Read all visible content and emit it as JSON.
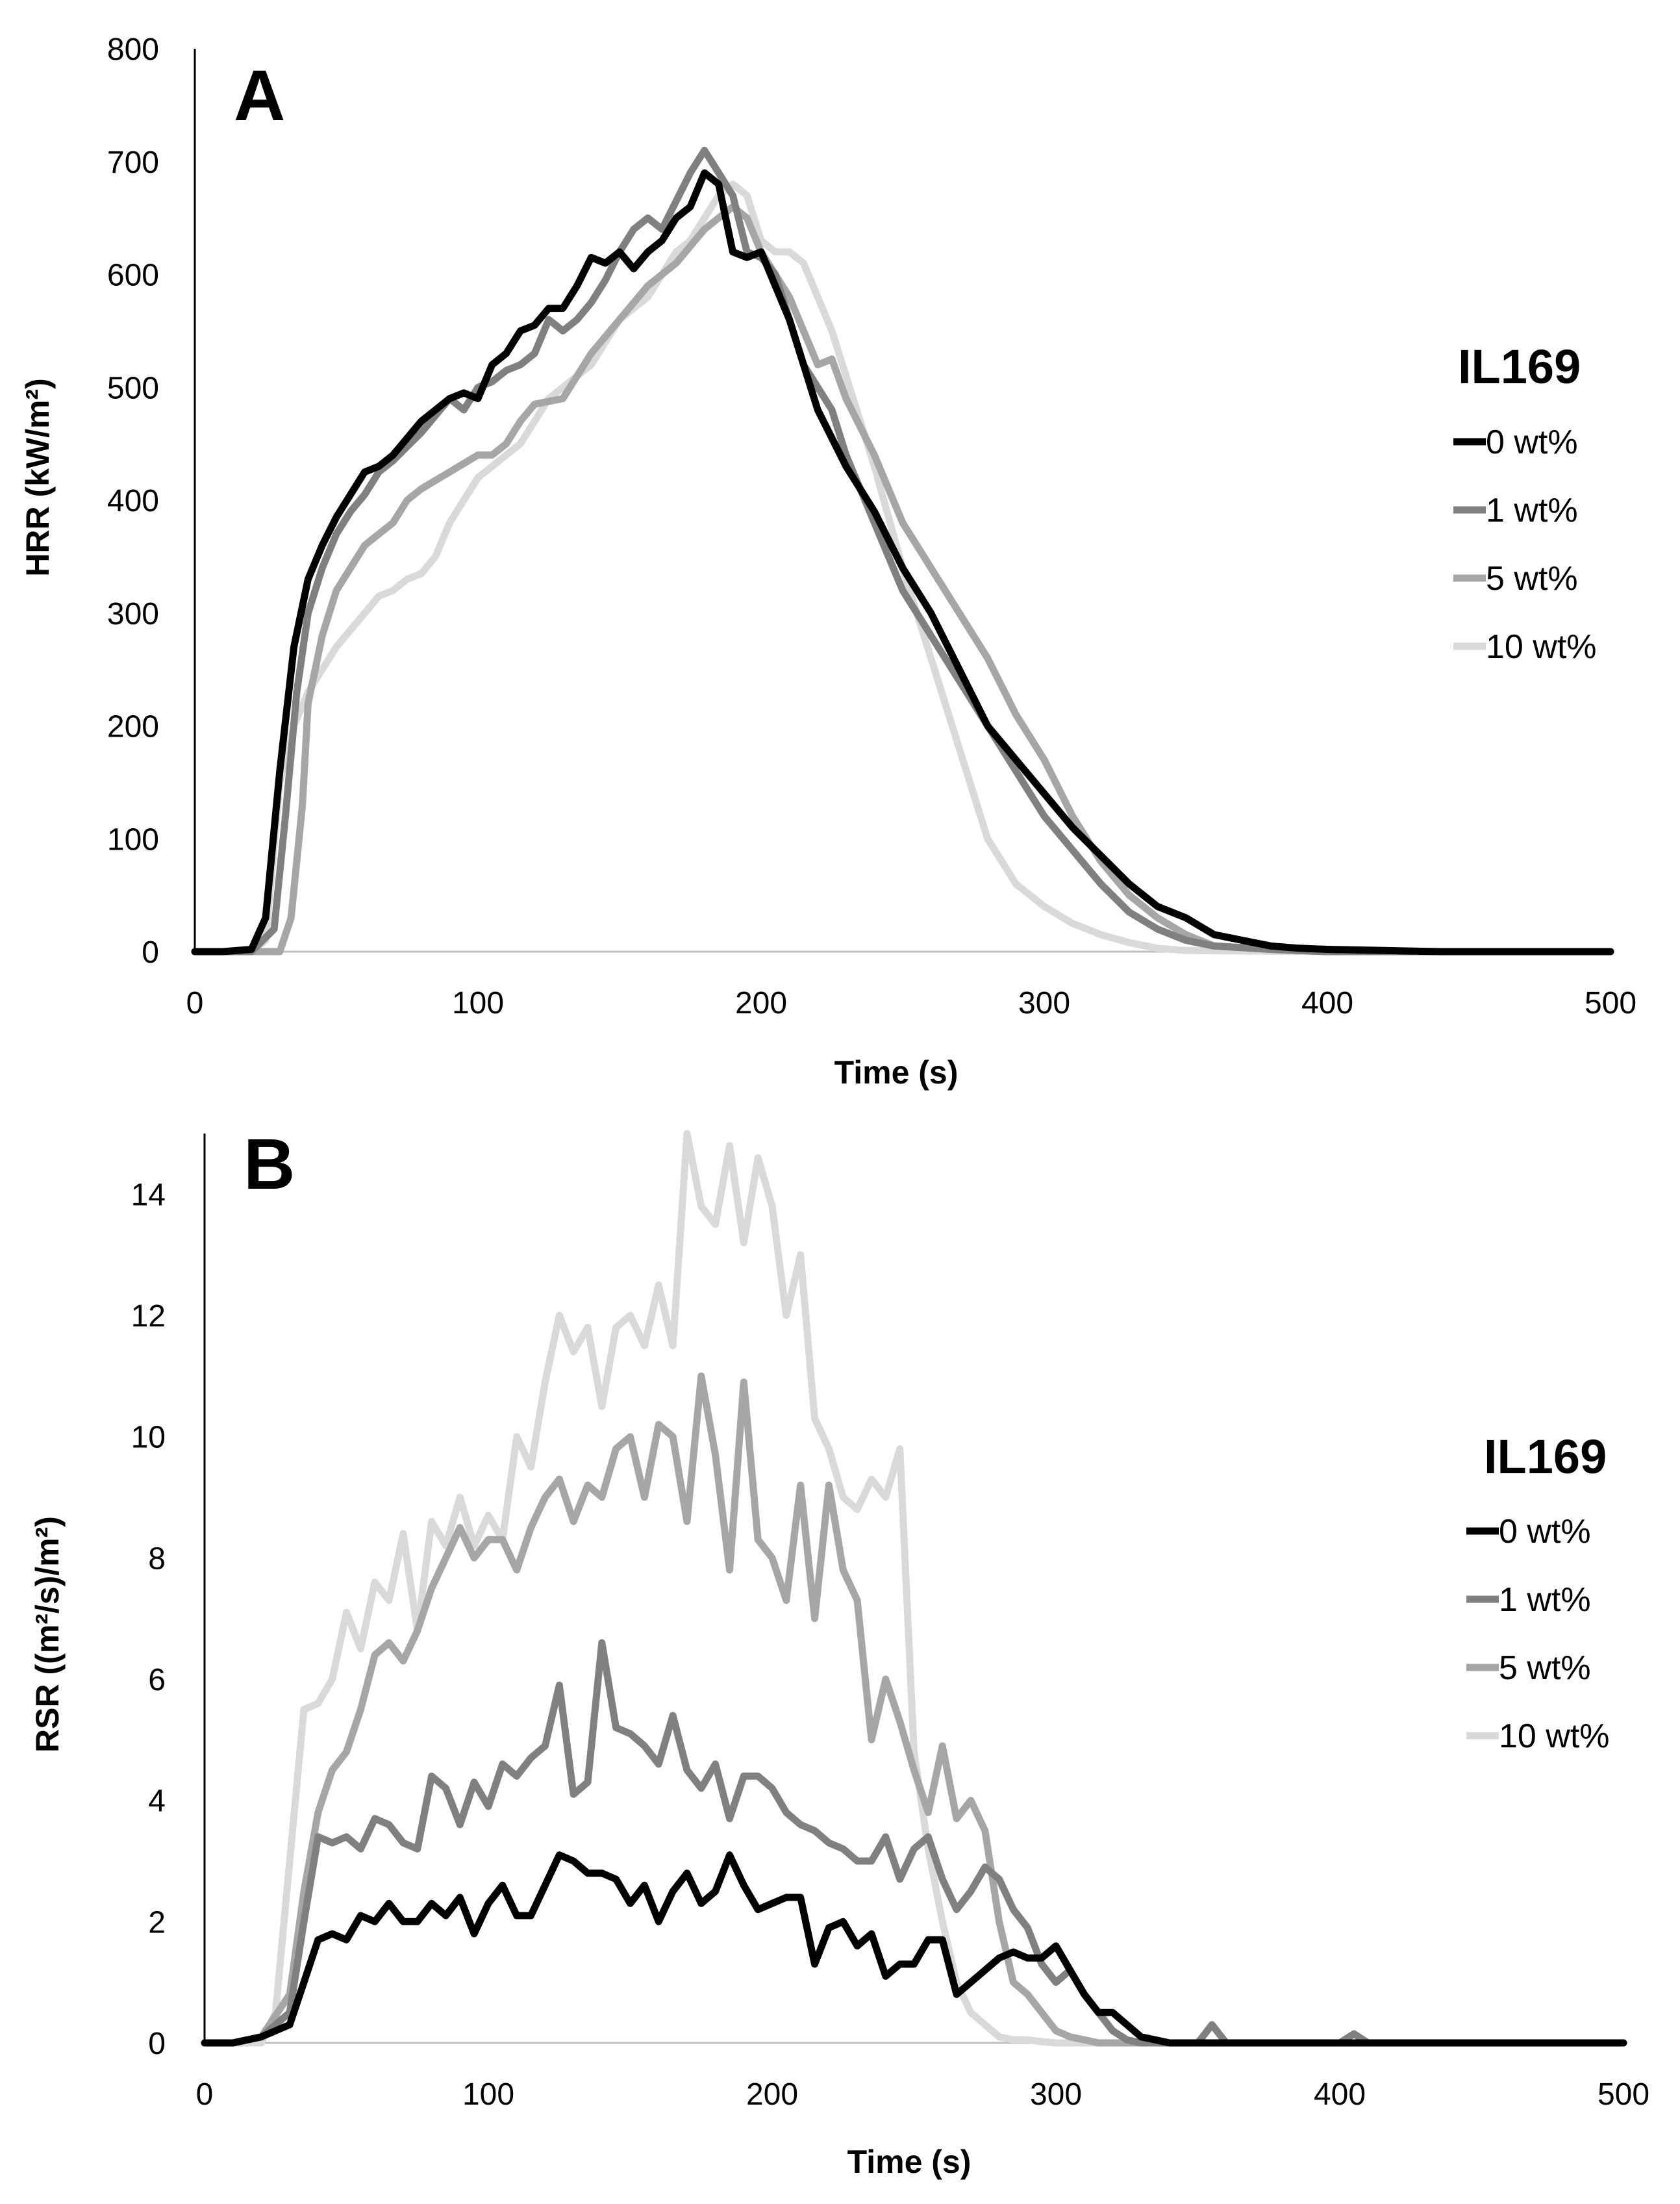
{
  "colors": {
    "s0": "#000000",
    "s1": "#808080",
    "s5": "#A6A6A6",
    "s10": "#D9D9D9",
    "axis": "#000000",
    "text": "#000000"
  },
  "chart_data": [
    {
      "type": "line",
      "panel_label": "A",
      "title": "",
      "xlabel": "Time (s)",
      "ylabel": "HRR (kW/m²)",
      "xlim": [
        0,
        500
      ],
      "ylim": [
        0,
        800
      ],
      "grid": false,
      "xticks": [
        0,
        100,
        200,
        300,
        400,
        500
      ],
      "yticks": [
        0,
        100,
        200,
        300,
        400,
        500,
        600,
        700,
        800
      ],
      "legend": {
        "title": "IL169",
        "position": "right",
        "entries": [
          "0 wt%",
          "1 wt%",
          "5 wt%",
          "10 wt%"
        ]
      },
      "series": [
        {
          "name": "0 wt%",
          "color_key": "s0",
          "x": [
            0,
            10,
            20,
            25,
            30,
            35,
            40,
            45,
            50,
            55,
            60,
            65,
            70,
            75,
            80,
            85,
            90,
            95,
            100,
            105,
            110,
            115,
            120,
            125,
            130,
            135,
            140,
            145,
            150,
            155,
            160,
            165,
            170,
            175,
            180,
            185,
            190,
            195,
            200,
            205,
            210,
            215,
            220,
            225,
            230,
            240,
            250,
            260,
            270,
            280,
            290,
            300,
            310,
            320,
            330,
            340,
            350,
            360,
            370,
            380,
            390,
            400,
            420,
            440,
            460,
            480,
            500
          ],
          "y": [
            0,
            0,
            2,
            30,
            160,
            270,
            330,
            360,
            385,
            405,
            425,
            430,
            440,
            455,
            470,
            480,
            490,
            495,
            490,
            520,
            530,
            550,
            555,
            570,
            570,
            590,
            615,
            610,
            620,
            605,
            620,
            630,
            650,
            660,
            690,
            680,
            620,
            615,
            620,
            590,
            560,
            520,
            480,
            455,
            430,
            390,
            340,
            300,
            250,
            200,
            170,
            140,
            110,
            85,
            60,
            40,
            30,
            15,
            10,
            5,
            3,
            2,
            1,
            0,
            0,
            0,
            0
          ]
        },
        {
          "name": "1 wt%",
          "color_key": "s1",
          "x": [
            0,
            10,
            20,
            28,
            32,
            36,
            40,
            45,
            50,
            55,
            60,
            65,
            70,
            80,
            90,
            95,
            100,
            105,
            110,
            115,
            120,
            125,
            130,
            135,
            140,
            145,
            150,
            155,
            160,
            165,
            170,
            175,
            180,
            185,
            190,
            195,
            200,
            205,
            210,
            215,
            220,
            225,
            230,
            240,
            250,
            260,
            270,
            280,
            290,
            300,
            310,
            320,
            330,
            340,
            350,
            360,
            380,
            400,
            420,
            450,
            480,
            500
          ],
          "y": [
            0,
            0,
            0,
            20,
            120,
            230,
            300,
            340,
            370,
            390,
            405,
            425,
            435,
            460,
            490,
            480,
            500,
            505,
            515,
            520,
            530,
            560,
            550,
            560,
            575,
            595,
            620,
            640,
            650,
            640,
            665,
            690,
            710,
            690,
            670,
            620,
            615,
            600,
            560,
            520,
            500,
            480,
            440,
            380,
            320,
            280,
            240,
            200,
            160,
            120,
            90,
            60,
            35,
            20,
            10,
            5,
            2,
            0,
            0,
            0,
            0,
            0
          ]
        },
        {
          "name": "5 wt%",
          "color_key": "s5",
          "x": [
            0,
            10,
            20,
            30,
            34,
            38,
            40,
            45,
            50,
            55,
            60,
            65,
            70,
            75,
            80,
            90,
            100,
            105,
            110,
            115,
            120,
            130,
            140,
            150,
            160,
            170,
            180,
            185,
            190,
            195,
            200,
            210,
            220,
            225,
            230,
            240,
            250,
            260,
            270,
            280,
            290,
            300,
            310,
            320,
            330,
            340,
            350,
            360,
            380,
            400,
            450,
            500
          ],
          "y": [
            0,
            0,
            0,
            0,
            30,
            130,
            220,
            280,
            320,
            340,
            360,
            370,
            380,
            400,
            410,
            425,
            440,
            440,
            450,
            470,
            485,
            490,
            530,
            560,
            590,
            610,
            640,
            650,
            660,
            650,
            620,
            580,
            520,
            525,
            490,
            440,
            380,
            340,
            300,
            260,
            210,
            170,
            120,
            80,
            50,
            30,
            15,
            5,
            2,
            0,
            0,
            0
          ]
        },
        {
          "name": "10 wt%",
          "color_key": "s10",
          "x": [
            0,
            10,
            20,
            25,
            30,
            35,
            40,
            45,
            50,
            55,
            60,
            65,
            70,
            75,
            80,
            85,
            90,
            95,
            100,
            105,
            110,
            115,
            120,
            125,
            130,
            135,
            140,
            145,
            150,
            155,
            160,
            165,
            170,
            175,
            180,
            185,
            190,
            195,
            200,
            205,
            210,
            215,
            220,
            225,
            230,
            240,
            250,
            260,
            270,
            280,
            290,
            300,
            310,
            320,
            330,
            340,
            350,
            400,
            450,
            500
          ],
          "y": [
            0,
            0,
            0,
            10,
            150,
            200,
            230,
            250,
            270,
            285,
            300,
            315,
            320,
            330,
            335,
            350,
            380,
            400,
            420,
            430,
            440,
            450,
            470,
            490,
            500,
            510,
            520,
            540,
            560,
            570,
            580,
            600,
            620,
            630,
            650,
            670,
            680,
            670,
            630,
            620,
            620,
            610,
            580,
            550,
            510,
            430,
            340,
            260,
            180,
            100,
            60,
            40,
            25,
            15,
            8,
            3,
            1,
            0,
            0,
            0
          ]
        }
      ]
    },
    {
      "type": "line",
      "panel_label": "B",
      "title": "",
      "xlabel": "Time (s)",
      "ylabel": "RSR ((m²/s)/m²)",
      "xlim": [
        0,
        500
      ],
      "ylim": [
        0,
        15
      ],
      "grid": false,
      "xticks": [
        0,
        100,
        200,
        300,
        400,
        500
      ],
      "yticks": [
        0,
        2,
        4,
        6,
        8,
        10,
        12,
        14
      ],
      "legend": {
        "title": "IL169",
        "position": "right",
        "entries": [
          "0 wt%",
          "1 wt%",
          "5 wt%",
          "10 wt%"
        ]
      },
      "series": [
        {
          "name": "0 wt%",
          "color_key": "s0",
          "x": [
            0,
            10,
            20,
            30,
            35,
            40,
            45,
            50,
            55,
            60,
            65,
            70,
            75,
            80,
            85,
            90,
            95,
            100,
            105,
            110,
            115,
            120,
            125,
            130,
            135,
            140,
            145,
            150,
            155,
            160,
            165,
            170,
            175,
            180,
            185,
            190,
            195,
            200,
            205,
            210,
            215,
            220,
            225,
            230,
            235,
            240,
            245,
            250,
            255,
            260,
            265,
            270,
            275,
            280,
            285,
            290,
            295,
            300,
            305,
            310,
            315,
            320,
            325,
            330,
            335,
            340,
            350,
            500
          ],
          "y": [
            0,
            0,
            0.1,
            0.3,
            1.0,
            1.7,
            1.8,
            1.7,
            2.1,
            2.0,
            2.3,
            2.0,
            2.0,
            2.3,
            2.1,
            2.4,
            1.8,
            2.3,
            2.6,
            2.1,
            2.1,
            2.6,
            3.1,
            3.0,
            2.8,
            2.8,
            2.7,
            2.3,
            2.6,
            2.0,
            2.5,
            2.8,
            2.3,
            2.5,
            3.1,
            2.6,
            2.2,
            2.3,
            2.4,
            2.4,
            1.3,
            1.9,
            2.0,
            1.6,
            1.8,
            1.1,
            1.3,
            1.3,
            1.7,
            1.7,
            0.8,
            1.0,
            1.2,
            1.4,
            1.5,
            1.4,
            1.4,
            1.6,
            1.2,
            0.8,
            0.5,
            0.5,
            0.3,
            0.1,
            0.05,
            0,
            0,
            0
          ]
        },
        {
          "name": "1 wt%",
          "color_key": "s1",
          "x": [
            0,
            10,
            20,
            30,
            35,
            40,
            45,
            50,
            55,
            60,
            65,
            70,
            75,
            80,
            85,
            90,
            95,
            100,
            105,
            110,
            115,
            120,
            125,
            130,
            135,
            140,
            145,
            150,
            155,
            160,
            165,
            170,
            175,
            180,
            185,
            190,
            195,
            200,
            205,
            210,
            215,
            220,
            225,
            230,
            235,
            240,
            245,
            250,
            255,
            260,
            265,
            270,
            275,
            280,
            285,
            290,
            295,
            300,
            305,
            310,
            315,
            320,
            325,
            330,
            340,
            350,
            355,
            360,
            370,
            400,
            405,
            410,
            420,
            450,
            500
          ],
          "y": [
            0,
            0,
            0.1,
            0.5,
            2.0,
            3.4,
            3.3,
            3.4,
            3.2,
            3.7,
            3.6,
            3.3,
            3.2,
            4.4,
            4.2,
            3.6,
            4.3,
            3.9,
            4.6,
            4.4,
            4.7,
            4.9,
            5.9,
            4.1,
            4.3,
            6.6,
            5.2,
            5.1,
            4.9,
            4.6,
            5.4,
            4.5,
            4.2,
            4.6,
            3.7,
            4.4,
            4.4,
            4.2,
            3.8,
            3.6,
            3.5,
            3.3,
            3.2,
            3.0,
            3.0,
            3.4,
            2.7,
            3.2,
            3.4,
            2.7,
            2.2,
            2.5,
            2.9,
            2.7,
            2.2,
            1.9,
            1.3,
            1.0,
            1.2,
            0.8,
            0.5,
            0.2,
            0.05,
            0,
            0,
            0,
            0.3,
            0,
            0,
            0,
            0.15,
            0,
            0,
            0,
            0
          ]
        },
        {
          "name": "5 wt%",
          "color_key": "s5",
          "x": [
            0,
            10,
            20,
            30,
            35,
            40,
            45,
            50,
            55,
            60,
            65,
            70,
            75,
            80,
            85,
            90,
            95,
            100,
            105,
            110,
            115,
            120,
            125,
            130,
            135,
            140,
            145,
            150,
            155,
            160,
            165,
            170,
            175,
            180,
            185,
            190,
            195,
            200,
            205,
            210,
            215,
            220,
            225,
            230,
            235,
            240,
            245,
            250,
            255,
            260,
            265,
            270,
            275,
            280,
            285,
            290,
            295,
            300,
            305,
            310,
            315,
            320,
            330,
            340,
            500
          ],
          "y": [
            0,
            0,
            0.1,
            0.8,
            2.5,
            3.8,
            4.5,
            4.8,
            5.5,
            6.4,
            6.6,
            6.3,
            6.8,
            7.5,
            8.0,
            8.5,
            8.0,
            8.3,
            8.3,
            7.8,
            8.5,
            9.0,
            9.3,
            8.6,
            9.2,
            9.0,
            9.8,
            10.0,
            9.0,
            10.2,
            10.0,
            8.6,
            11.0,
            9.7,
            7.8,
            10.9,
            8.3,
            8.0,
            7.3,
            9.2,
            7.0,
            9.2,
            7.8,
            7.3,
            5.0,
            6.0,
            5.3,
            4.5,
            3.8,
            4.9,
            3.7,
            4.0,
            3.5,
            2.0,
            1.0,
            0.8,
            0.5,
            0.2,
            0.1,
            0.05,
            0,
            0,
            0,
            0,
            0
          ]
        },
        {
          "name": "10 wt%",
          "color_key": "s10",
          "x": [
            0,
            10,
            20,
            25,
            30,
            35,
            40,
            45,
            50,
            55,
            60,
            65,
            70,
            75,
            80,
            85,
            90,
            95,
            100,
            105,
            110,
            115,
            120,
            125,
            130,
            135,
            140,
            145,
            150,
            155,
            160,
            165,
            170,
            175,
            180,
            185,
            190,
            195,
            200,
            205,
            210,
            215,
            220,
            225,
            230,
            235,
            240,
            245,
            250,
            255,
            260,
            265,
            270,
            275,
            280,
            285,
            290,
            295,
            300,
            310,
            500
          ],
          "y": [
            0,
            0,
            0,
            0.5,
            3.0,
            5.5,
            5.6,
            6.0,
            7.1,
            6.5,
            7.6,
            7.3,
            8.4,
            6.8,
            8.6,
            8.2,
            9.0,
            8.2,
            8.7,
            8.3,
            10.0,
            9.5,
            10.9,
            12.0,
            11.4,
            11.8,
            10.5,
            11.8,
            12.0,
            11.5,
            12.5,
            11.5,
            15.0,
            13.8,
            13.5,
            14.8,
            13.2,
            14.6,
            13.8,
            12.0,
            13.0,
            10.3,
            9.8,
            9.0,
            8.8,
            9.3,
            9.0,
            9.8,
            4.8,
            3.2,
            2.0,
            1.0,
            0.5,
            0.3,
            0.1,
            0.05,
            0.05,
            0.02,
            0,
            0,
            0
          ]
        }
      ]
    }
  ]
}
